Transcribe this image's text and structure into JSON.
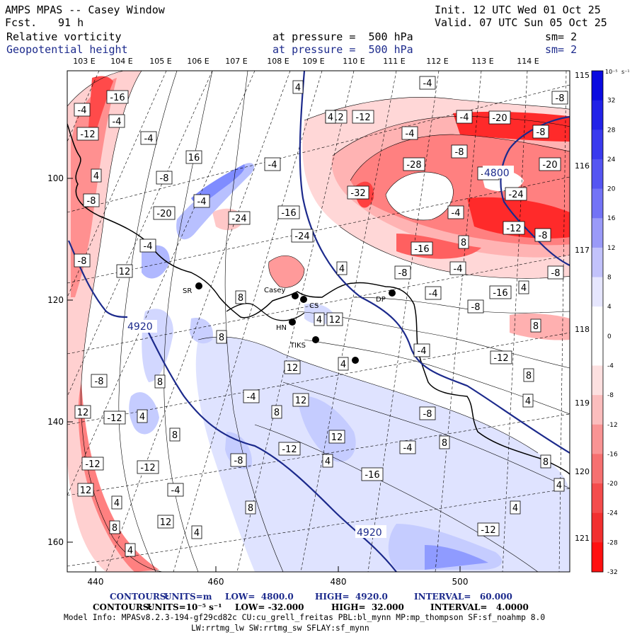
{
  "header": {
    "title": "AMPS MPAS -- Casey Window",
    "fcst_label": "Fcst.",
    "fcst_value": "91 h",
    "init": "Init. 12 UTC Wed 01 Oct 25",
    "valid": "Valid. 07 UTC Sun 05 Oct 25",
    "field1_name": "Relative vorticity",
    "field1_level": "at pressure =  500 hPa",
    "field1_sm": "sm= 2",
    "field2_name": "Geopotential height",
    "field2_level": "at pressure =  500 hPa",
    "field2_sm": "sm= 2"
  },
  "map": {
    "top_longitudes": [
      "103 E",
      "104 E",
      "105 E",
      "106 E",
      "107 E",
      "108 E",
      "109 E",
      "110 E",
      "111 E",
      "112 E",
      "113 E",
      "114 E"
    ],
    "right_latitudes": [
      "115 E",
      "116 E",
      "117 E",
      "118 E",
      "119 E",
      "120 E",
      "121 E"
    ],
    "x_ticks": [
      "440",
      "460",
      "480",
      "500"
    ],
    "y_ticks": [
      "100",
      "120",
      "140",
      "160"
    ],
    "stations": [
      "SR",
      "Casey",
      "CS",
      "HN",
      "TIKS",
      "DP"
    ],
    "height_labels": [
      "4800",
      "4920",
      "4920"
    ],
    "vorticity_labels": [
      "-4",
      "-16",
      "-4",
      "-12",
      "-4",
      "4",
      "-12",
      "-4",
      "-12",
      "-8",
      "4",
      "-4",
      "16",
      "-8",
      "-4",
      "4",
      "-8",
      "-4",
      "-24",
      "-16",
      "-20",
      "-24",
      "-32",
      "-28",
      "-4",
      "-20",
      "-8",
      "-8",
      "-12",
      "-24",
      "-20",
      "-12",
      "-8",
      "-16",
      "-4",
      "8",
      "-4",
      "-8",
      "12",
      "4",
      "-8",
      "-4",
      "-8",
      "8",
      "-4",
      "-16",
      "4",
      "-8",
      "8",
      "8",
      "4",
      "12",
      "-4",
      "-12",
      "12",
      "4",
      "-8",
      "8",
      "-4",
      "8",
      "12",
      "4",
      "12",
      "-12",
      "4",
      "8",
      "8",
      "-8",
      "8",
      "12",
      "-12",
      "-4",
      "-8",
      "4",
      "-12",
      "8",
      "-12",
      "-16",
      "4",
      "12",
      "-4",
      "4",
      "8",
      "4",
      "12",
      "8",
      "-12",
      "4",
      "4"
    ],
    "colors": {
      "height_contour": "#1c2a8c",
      "neg_strong": "#ff1a1a",
      "pos_strong": "#1212e8"
    }
  },
  "colorbar": {
    "unit_exp": "10⁻⁵",
    "unit_tail": "s⁻¹",
    "labels": [
      "32",
      "28",
      "24",
      "20",
      "16",
      "12",
      "8",
      "4",
      "0",
      "-4",
      "-8",
      "-12",
      "-16",
      "-20",
      "-24",
      "-28",
      "-32"
    ]
  },
  "footer": {
    "contours1_label": "CONTOURS:",
    "contours1_units": "UNITS=m",
    "contours1_low": "LOW=  4800.0",
    "contours1_high": "HIGH=  4920.0",
    "contours1_interval": "INTERVAL=   60.000",
    "contours2_label": "CONTOURS:",
    "contours2_units": "UNITS=10⁻⁵ s⁻¹",
    "contours2_low": "LOW= -32.000",
    "contours2_high": "HIGH=  32.000",
    "contours2_interval": "INTERVAL=   4.0000",
    "model_info": "Model Info: MPASv8.2.3-194-gf29cd82c CU:cu_grell_freitas PBL:bl_mynn MP:mp_thompson SF:sf_noahmp 8.0",
    "model_info2": "LW:rrtmg_lw SW:rrtmg_sw SFLAY:sf_mynn"
  }
}
